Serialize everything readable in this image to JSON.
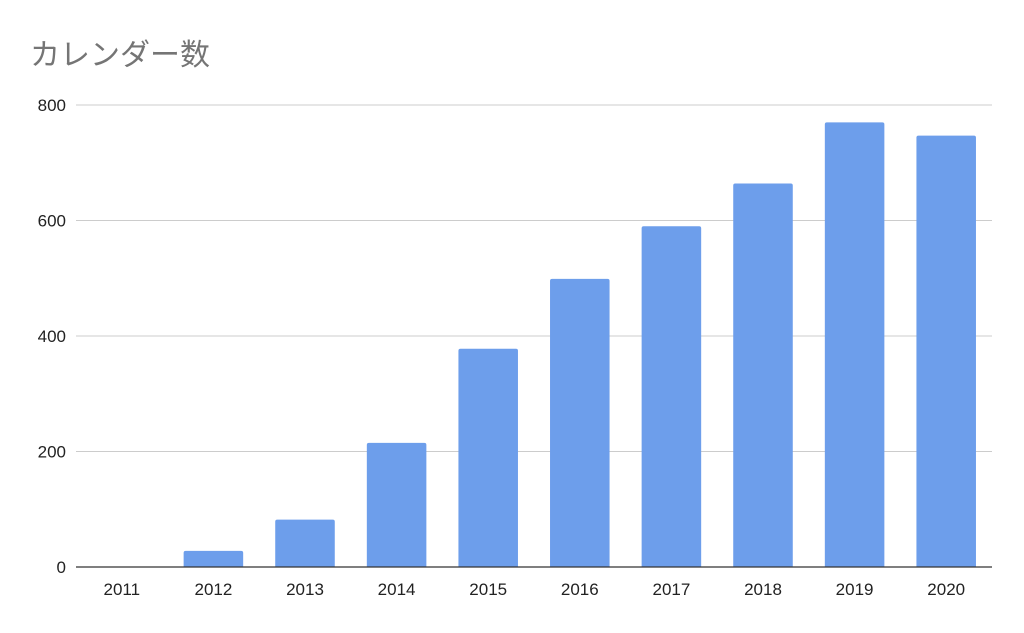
{
  "chart_data": {
    "type": "bar",
    "title": "カレンダー数",
    "xlabel": "",
    "ylabel": "",
    "categories": [
      "2011",
      "2012",
      "2013",
      "2014",
      "2015",
      "2016",
      "2017",
      "2018",
      "2019",
      "2020"
    ],
    "values": [
      0,
      28,
      82,
      215,
      378,
      499,
      590,
      664,
      770,
      747
    ],
    "ylim": [
      0,
      800
    ],
    "yticks": [
      "0",
      "200",
      "400",
      "600",
      "800"
    ],
    "grid": true,
    "legend": "none",
    "colors": {
      "bar": "#6d9eeb",
      "grid": "#cccccc",
      "axis": "#333333",
      "title": "#757575"
    }
  }
}
